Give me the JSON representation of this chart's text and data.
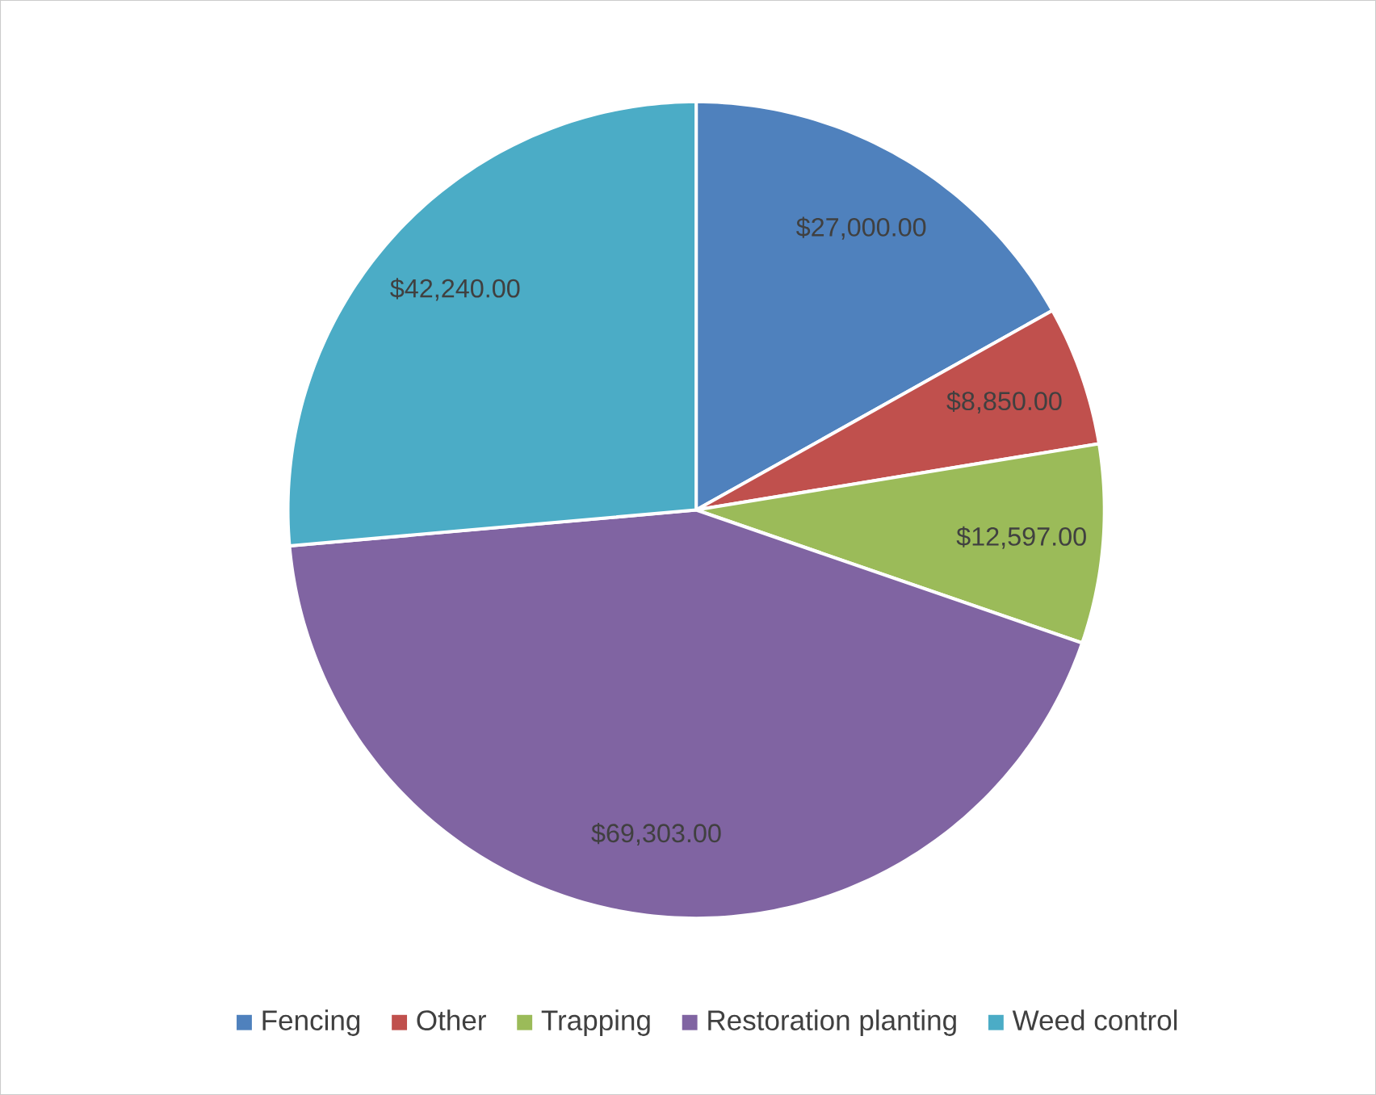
{
  "chart_data": {
    "type": "pie",
    "categories": [
      "Fencing",
      "Other",
      "Trapping",
      "Restoration planting",
      "Weed control"
    ],
    "values": [
      27000,
      8850,
      12597,
      69303,
      42240
    ],
    "colors": [
      "#4f81bd",
      "#c0504d",
      "#9bbb59",
      "#8064a2",
      "#4bacc6"
    ],
    "value_labels": [
      "$27,000.00",
      "$8,850.00",
      "$12,597.00",
      "$69,303.00",
      "$42,240.00"
    ],
    "legend": "bottom"
  }
}
